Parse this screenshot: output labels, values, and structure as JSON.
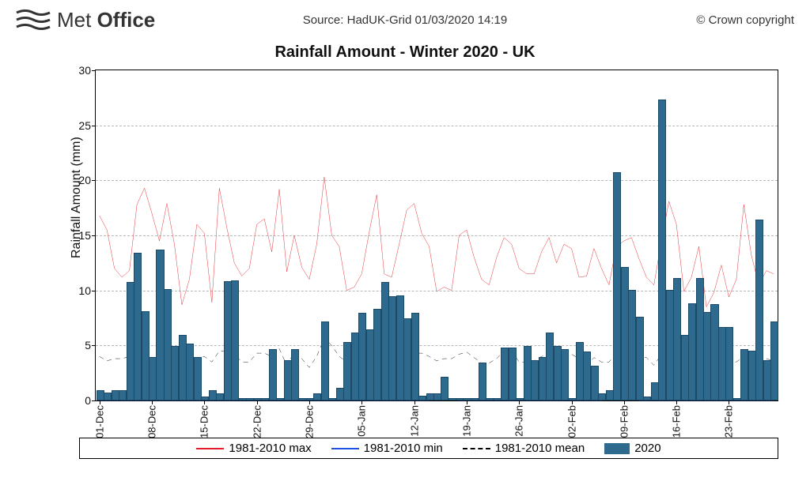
{
  "header": {
    "logo_text_thin": "Met",
    "logo_text_bold": "Office",
    "source": "Source: HadUK-Grid 01/03/2020 14:19",
    "copyright": "© Crown copyright"
  },
  "chart": {
    "type": "bar+line",
    "title": "Rainfall Amount - Winter 2020 - UK",
    "ylabel": "Rainfall Amount (mm)",
    "ylim": [
      0,
      30
    ],
    "ytick_step": 5,
    "background_color": "#ffffff",
    "grid_color": "#888888",
    "xlabels": [
      "01-Dec",
      "08-Dec",
      "15-Dec",
      "22-Dec",
      "29-Dec",
      "05-Jan",
      "12-Jan",
      "19-Jan",
      "26-Jan",
      "02-Feb",
      "09-Feb",
      "16-Feb",
      "23-Feb"
    ],
    "bar_color": "#2d6a8e",
    "max_line_color": "#e21f26",
    "min_line_color": "#1f4fe2",
    "mean_line_color": "#000000",
    "mean_line_dash": "6,5",
    "line_width": 1.8,
    "bars_2020": [
      0.8,
      0.6,
      0.8,
      0.8,
      10.6,
      13.3,
      8.0,
      3.8,
      13.6,
      10.0,
      4.8,
      5.8,
      5.0,
      3.8,
      0.2,
      0.8,
      0.5,
      10.7,
      10.8,
      0.1,
      0.1,
      0.1,
      0.1,
      4.5,
      0.1,
      3.5,
      4.5,
      0.1,
      0.1,
      0.5,
      7.0,
      0.1,
      1.0,
      5.2,
      6.0,
      7.8,
      6.3,
      8.2,
      10.6,
      9.3,
      9.4,
      7.3,
      7.8,
      0.3,
      0.5,
      0.5,
      2.0,
      0.1,
      0.1,
      0.1,
      0.1,
      3.3,
      0.1,
      0.1,
      4.7,
      4.7,
      0.1,
      4.8,
      3.5,
      3.8,
      6.0,
      4.8,
      4.5,
      0.1,
      5.2,
      4.3,
      3.0,
      0.5,
      0.8,
      20.6,
      12.0,
      9.9,
      7.5,
      0.2,
      1.5,
      27.2,
      9.9,
      11.0,
      5.8,
      8.7,
      11.0,
      7.9,
      8.6,
      6.5,
      6.5,
      0.1,
      4.5,
      4.4,
      16.3,
      3.5,
      7.0
    ],
    "max_line": [
      16.8,
      15.5,
      12.0,
      11.2,
      11.8,
      17.8,
      19.3,
      17.0,
      14.5,
      17.9,
      14.2,
      8.7,
      11.0,
      16.0,
      15.2,
      8.9,
      19.3,
      15.7,
      12.5,
      11.3,
      12.0,
      16.0,
      16.5,
      13.5,
      19.2,
      11.7,
      15.0,
      12.1,
      11.0,
      14.2,
      20.3,
      15.0,
      14.0,
      10.0,
      10.3,
      11.5,
      15.3,
      18.7,
      11.5,
      11.2,
      14.2,
      17.3,
      17.9,
      15.2,
      14.0,
      9.9,
      10.3,
      10.0,
      15.0,
      15.5,
      13.0,
      11.0,
      10.5,
      13.0,
      14.8,
      14.2,
      12.0,
      11.5,
      11.5,
      13.5,
      14.8,
      12.5,
      14.2,
      13.8,
      11.2,
      11.3,
      13.8,
      12.0,
      10.5,
      14.0,
      14.5,
      14.8,
      12.9,
      11.2,
      10.5,
      14.5,
      18.1,
      16.0,
      9.9,
      11.2,
      14.0,
      8.5,
      9.8,
      12.3,
      9.4,
      11.0,
      17.8,
      13.2,
      10.5,
      11.8,
      11.5
    ],
    "min_line": [
      0.0,
      0.0,
      0.0,
      0.0,
      0.0,
      0.0,
      0.0,
      0.0,
      0.0,
      0.0,
      0.0,
      0.0,
      0.0,
      0.0,
      0.0,
      0.0,
      0.0,
      0.0,
      0.0,
      0.0,
      0.0,
      0.0,
      0.0,
      0.0,
      0.0,
      0.0,
      0.0,
      0.0,
      0.0,
      0.0,
      0.0,
      0.0,
      0.0,
      0.0,
      0.0,
      0.0,
      0.0,
      0.0,
      0.0,
      0.0,
      0.0,
      0.0,
      0.0,
      0.0,
      0.0,
      0.3,
      0.3,
      0.1,
      0.0,
      0.0,
      0.0,
      0.0,
      0.0,
      0.0,
      0.0,
      0.0,
      0.0,
      0.0,
      0.0,
      0.0,
      0.0,
      0.0,
      0.0,
      0.0,
      0.0,
      0.0,
      0.0,
      0.0,
      0.1,
      0.0,
      0.7,
      0.3,
      0.0,
      0.0,
      0.0,
      0.0,
      0.0,
      0.0,
      0.0,
      0.0,
      0.0,
      0.0,
      0.0,
      0.0,
      0.0,
      0.0,
      0.0,
      0.0,
      0.0,
      0.0,
      0.0
    ],
    "mean_line": [
      4.0,
      3.6,
      3.8,
      3.8,
      4.0,
      4.2,
      3.8,
      3.2,
      4.4,
      4.3,
      3.5,
      3.5,
      3.8,
      3.9,
      4.0,
      3.5,
      4.5,
      4.5,
      4.2,
      3.5,
      3.5,
      4.3,
      4.3,
      4.0,
      4.7,
      3.2,
      4.4,
      3.8,
      3.0,
      4.0,
      5.7,
      5.0,
      4.0,
      3.5,
      4.5,
      4.5,
      4.5,
      4.8,
      4.2,
      3.7,
      4.5,
      4.4,
      4.3,
      4.3,
      4.0,
      3.6,
      3.8,
      3.8,
      4.2,
      4.4,
      3.9,
      3.4,
      3.4,
      3.8,
      4.5,
      4.5,
      3.5,
      3.5,
      3.6,
      4.0,
      4.2,
      3.5,
      4.5,
      4.2,
      3.8,
      3.2,
      3.9,
      3.5,
      3.5,
      4.3,
      4.5,
      4.3,
      3.9,
      3.9,
      3.2,
      4.2,
      4.6,
      4.3,
      3.6,
      3.2,
      3.8,
      3.2,
      3.5,
      3.8,
      3.5,
      3.5,
      4.0,
      3.6,
      3.5,
      3.8,
      3.6
    ]
  },
  "legend": {
    "max": "1981-2010 max",
    "min": "1981-2010 min",
    "mean": "1981-2010 mean",
    "bars": "2020"
  }
}
